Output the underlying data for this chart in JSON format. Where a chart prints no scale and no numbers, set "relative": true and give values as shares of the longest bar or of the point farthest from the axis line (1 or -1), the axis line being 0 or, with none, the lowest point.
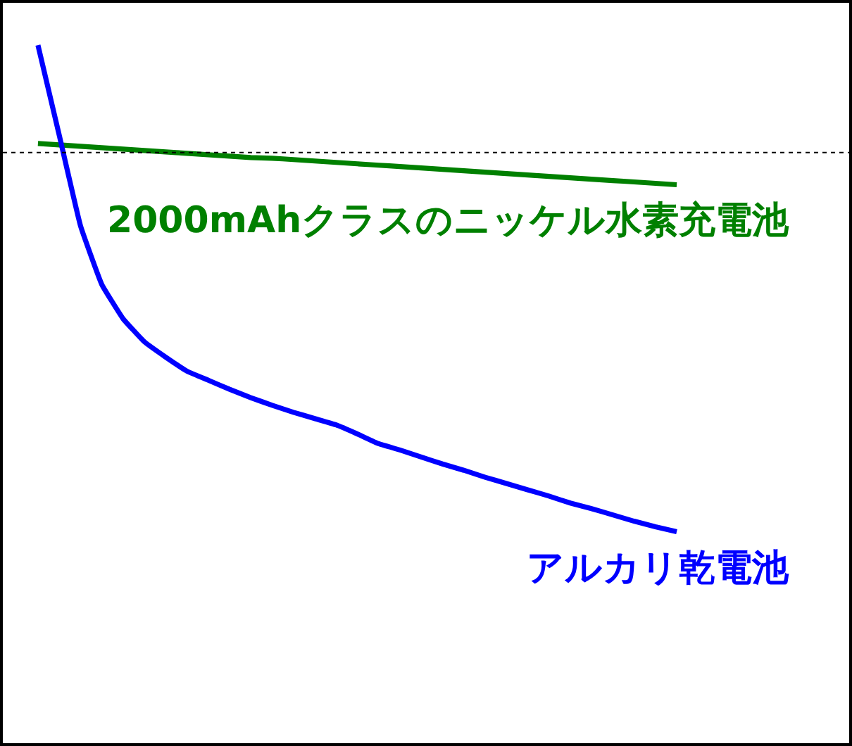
{
  "chart_data": {
    "type": "line",
    "relative": true,
    "categories": [
      null,
      null,
      null,
      null,
      null,
      null,
      null,
      null,
      null,
      null,
      null,
      null,
      null,
      null,
      null,
      null,
      null,
      null,
      null,
      null,
      null,
      null,
      null,
      null,
      null,
      null,
      null,
      null,
      null,
      null,
      null
    ],
    "series": [
      {
        "name": "2000mAhクラスのニッケル水素充電池",
        "color": "#008000",
        "values": [
          0.859,
          0.857,
          0.855,
          0.853,
          0.851,
          0.849,
          0.847,
          0.845,
          0.843,
          0.841,
          0.839,
          0.838,
          0.836,
          0.834,
          0.832,
          0.83,
          0.828,
          0.826,
          0.824,
          0.822,
          0.82,
          0.818,
          0.816,
          0.814,
          0.812,
          0.81,
          0.808,
          0.806,
          0.804,
          0.802,
          0.8
        ]
      },
      {
        "name": "アルカリ乾電池",
        "color": "#0000ff",
        "values": [
          1.0,
          0.871,
          0.741,
          0.657,
          0.608,
          0.575,
          0.553,
          0.533,
          0.52,
          0.507,
          0.495,
          0.484,
          0.474,
          0.465,
          0.456,
          0.443,
          0.429,
          0.42,
          0.41,
          0.4,
          0.391,
          0.381,
          0.372,
          0.363,
          0.354,
          0.344,
          0.336,
          0.327,
          0.318,
          0.31,
          0.303
        ]
      }
    ],
    "ref_lines": [
      {
        "axis": "y",
        "value": 0.846,
        "line_style": "dotted",
        "color": "#000000"
      }
    ],
    "marker": "none",
    "line_style": "solid"
  }
}
